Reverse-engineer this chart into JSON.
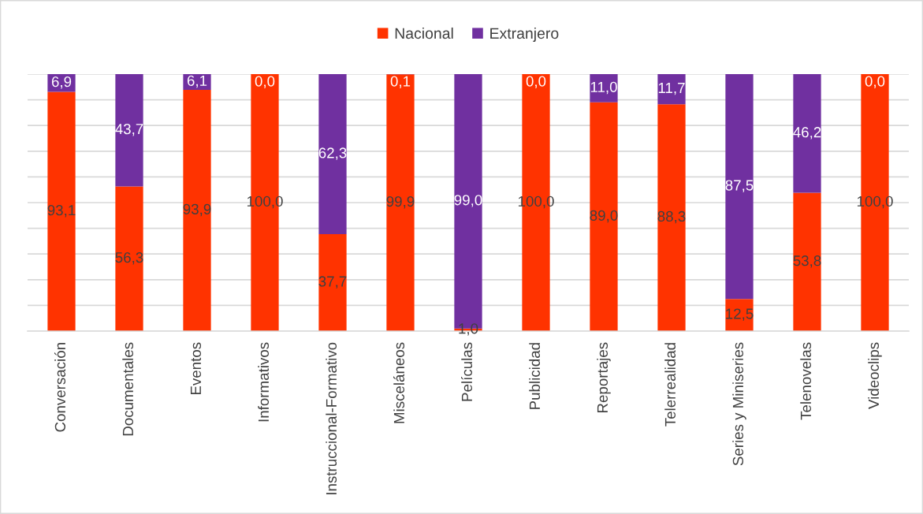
{
  "chart_data": {
    "type": "bar",
    "stacked": true,
    "categories": [
      "Conversación",
      "Documentales",
      "Eventos",
      "Informativos",
      "Instruccional-Formativo",
      "Misceláneos",
      "Películas",
      "Publicidad",
      "Reportajes",
      "Telerrealidad",
      "Series y Miniseries",
      "Telenovelas",
      "Videoclips"
    ],
    "series": [
      {
        "name": "Nacional",
        "color": "#ff3300",
        "values": [
          93.1,
          56.3,
          93.9,
          100.0,
          37.7,
          99.9,
          1.0,
          100.0,
          89.0,
          88.3,
          12.5,
          53.8,
          100.0
        ],
        "value_labels": [
          "93,1",
          "56,3",
          "93,9",
          "100,0",
          "37,7",
          "99,9",
          "1,0",
          "100,0",
          "89,0",
          "88,3",
          "12,5",
          "53,8",
          "100,0"
        ]
      },
      {
        "name": "Extranjero",
        "color": "#7030a0",
        "values": [
          6.9,
          43.7,
          6.1,
          0.0,
          62.3,
          0.1,
          99.0,
          0.0,
          11.0,
          11.7,
          87.5,
          46.2,
          0.0
        ],
        "value_labels": [
          "6,9",
          "43,7",
          "6,1",
          "0,0",
          "62,3",
          "0,1",
          "99,0",
          "0,0",
          "11,0",
          "11,7",
          "87,5",
          "46,2",
          "0,0"
        ]
      }
    ],
    "ylim": [
      0,
      100
    ],
    "yticks": [
      {
        "value": 0,
        "label": null
      },
      {
        "value": 10,
        "label": null
      },
      {
        "value": 20,
        "label": null
      },
      {
        "value": 30,
        "label": null
      },
      {
        "value": 40,
        "label": null
      },
      {
        "value": 50,
        "label": null
      },
      {
        "value": 60,
        "label": null
      },
      {
        "value": 70,
        "label": null
      },
      {
        "value": 80,
        "label": null
      },
      {
        "value": 90,
        "label": null
      },
      {
        "value": 100,
        "label": null
      }
    ],
    "tick_labels": "x",
    "grid": "y",
    "legend": "top"
  }
}
